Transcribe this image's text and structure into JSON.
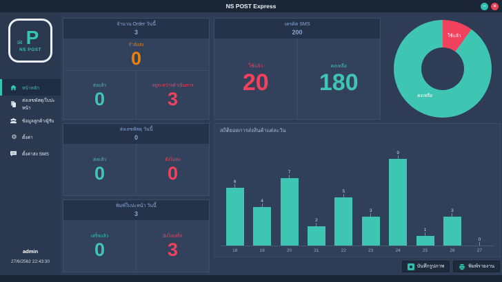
{
  "window": {
    "title": "NS POST Express",
    "minimize_glyph": "–",
    "close_glyph": "×"
  },
  "sidebar": {
    "logo_letter": "P",
    "logo_caption": "NS POST",
    "items": [
      {
        "label": "หน้าหลัก",
        "icon": "home-icon",
        "active": true
      },
      {
        "label": "ส่งเลขพัสดุ/ใบปะหน้า",
        "icon": "parcel-icon",
        "active": false
      },
      {
        "label": "ข้อมูลลูกค้า/ผู้รับ",
        "icon": "customers-icon",
        "active": false
      },
      {
        "label": "ตั้งค่า",
        "icon": "settings-icon",
        "active": false
      },
      {
        "label": "ตั้งค่าส่ง SMS",
        "icon": "sms-icon",
        "active": false
      }
    ],
    "user": "admin",
    "datetime": "27/6/2562 22:43:30"
  },
  "icons": {
    "gear_glyph": "⚙",
    "envelope_glyph": "✉"
  },
  "cards": {
    "orders": {
      "title": "จำนวน Order วันนี้",
      "total": "3",
      "sending_label": "กำลังส่ง",
      "sending_value": "0",
      "sent_label": "ส่งแล้ว",
      "sent_value": "0",
      "inprogress_label": "อยู่ระหว่างดำเนินการ",
      "inprogress_value": "3"
    },
    "tracking": {
      "title": "ส่งเลขพัสดุ วันนี้",
      "total": "0",
      "sent_label": "ส่งแล้ว",
      "sent_value": "0",
      "notsent_label": "ยังไม่ส่ง",
      "notsent_value": "0"
    },
    "labels": {
      "title": "พิมพ์ใบปะหน้า วันนี้",
      "total": "3",
      "done_label": "เสร็จแล้ว",
      "done_value": "0",
      "notdone_label": "ยังไม่เสร็จ",
      "notdone_value": "3"
    },
    "sms": {
      "title": "เครดิต SMS",
      "total": "200",
      "used_label": "ใช้แล้ว",
      "used_value": "20",
      "remaining_label": "คงเหลือ",
      "remaining_value": "180"
    }
  },
  "chart_data": [
    {
      "type": "pie",
      "donut": true,
      "title": "เครดิต SMS",
      "labels": [
        "ใช้แล้ว",
        "คงเหลือ"
      ],
      "values": [
        20,
        180
      ],
      "colors": [
        "#f2415c",
        "#3ec6b2"
      ],
      "legend_position": "on-slices"
    },
    {
      "type": "bar",
      "title": "สถิติยอดการส่งสินค้าแต่ละวัน",
      "categories": [
        "18",
        "19",
        "20",
        "21",
        "22",
        "23",
        "24",
        "25",
        "26",
        "27"
      ],
      "values": [
        6,
        4,
        7,
        2,
        5,
        3,
        9,
        1,
        3,
        0
      ],
      "bar_color": "#3ec6b2",
      "value_labels": true,
      "grid": false,
      "ylim": [
        0,
        9
      ]
    }
  ],
  "footer": {
    "save_image_label": "บันทึกรูปภาพ",
    "print_report_label": "พิมพ์รายงาน"
  },
  "colors": {
    "teal": "#3ec6b2",
    "red": "#f2415c",
    "orange": "#e8820e",
    "header_text": "#8aa6d8",
    "background": "#2e3d55"
  }
}
